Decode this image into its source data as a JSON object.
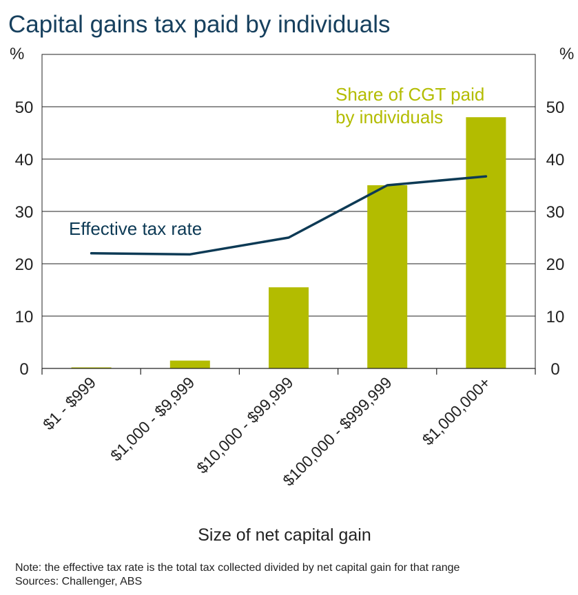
{
  "chart_data": {
    "type": "bar",
    "title": "Capital gains tax paid by individuals",
    "xlabel": "Size of net capital gain",
    "y_unit_left": "%",
    "y_unit_right": "%",
    "ylim": [
      0,
      60
    ],
    "yticks": [
      0,
      10,
      20,
      30,
      40,
      50
    ],
    "grid": true,
    "categories": [
      "$1 - $999",
      "$1,000 - $9,999",
      "$10,000 - $99,999",
      "$100,000 - $999,999",
      "$1,000,000+"
    ],
    "series": [
      {
        "name": "Share of CGT paid by individuals",
        "name_lines": [
          "Share of CGT paid",
          "by individuals"
        ],
        "type": "bar",
        "color": "#b3bc00",
        "values": [
          0.2,
          1.5,
          15.5,
          35,
          48
        ]
      },
      {
        "name": "Effective tax rate",
        "type": "line",
        "color": "#0d3a55",
        "values": [
          22,
          21.8,
          25,
          35,
          36.7
        ]
      }
    ],
    "notes": [
      "Note: the effective tax rate is the total tax collected divided by net capital gain for that range",
      "Sources: Challenger, ABS"
    ]
  }
}
